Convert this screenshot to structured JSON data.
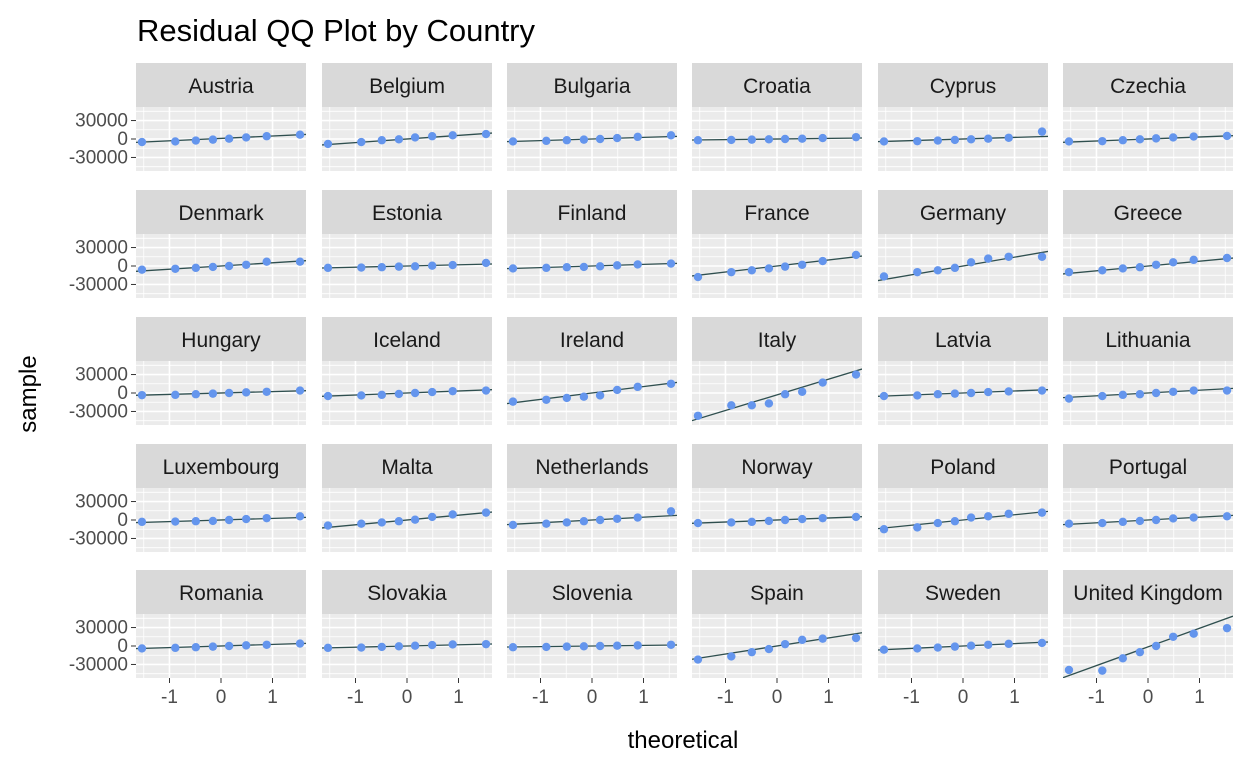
{
  "chart_data": {
    "type": "scatter",
    "title": "Residual QQ Plot by Country",
    "xlabel": "theoretical",
    "ylabel": "sample",
    "xlim": [
      -1.65,
      1.65
    ],
    "ylim": [
      -52000,
      52000
    ],
    "xticks": [
      -1,
      0,
      1
    ],
    "yticks": [
      -30000,
      0,
      30000
    ],
    "grid": true,
    "point_color": "#6495ED",
    "line_color": "#2F4F4F",
    "theoretical": [
      -1.5341,
      -0.8871,
      -0.4888,
      -0.1573,
      0.1573,
      0.4888,
      0.8871,
      1.5341
    ],
    "panels": [
      {
        "name": "Austria",
        "sample": [
          -5000,
          -4000,
          -2500,
          -1000,
          500,
          2500,
          4500,
          7000
        ],
        "line": [
          -5000,
          7000
        ]
      },
      {
        "name": "Belgium",
        "sample": [
          -8000,
          -5000,
          -2000,
          -500,
          2500,
          4500,
          6000,
          8000
        ],
        "line": [
          -9000,
          9000
        ]
      },
      {
        "name": "Bulgaria",
        "sample": [
          -4000,
          -3000,
          -2000,
          -1000,
          0,
          1500,
          3500,
          6000
        ],
        "line": [
          -4000,
          4000
        ]
      },
      {
        "name": "Croatia",
        "sample": [
          -2000,
          -1500,
          -1000,
          -500,
          0,
          500,
          1500,
          3000
        ],
        "line": [
          -1500,
          1500
        ]
      },
      {
        "name": "Cyprus",
        "sample": [
          -4000,
          -3500,
          -2500,
          -1500,
          -500,
          500,
          2000,
          12000
        ],
        "line": [
          -4000,
          4000
        ]
      },
      {
        "name": "Czechia",
        "sample": [
          -4000,
          -3500,
          -2000,
          -500,
          1000,
          2500,
          4000,
          5000
        ],
        "line": [
          -5000,
          5000
        ]
      },
      {
        "name": "Denmark",
        "sample": [
          -6000,
          -4500,
          -3000,
          -1500,
          0,
          2000,
          7000,
          7000
        ],
        "line": [
          -8000,
          8000
        ]
      },
      {
        "name": "Estonia",
        "sample": [
          -3000,
          -2500,
          -2000,
          -1000,
          -500,
          500,
          1500,
          5000
        ],
        "line": [
          -3000,
          3000
        ]
      },
      {
        "name": "Finland",
        "sample": [
          -4000,
          -3000,
          -2000,
          -1500,
          -500,
          1000,
          2500,
          4000
        ],
        "line": [
          -4000,
          4000
        ]
      },
      {
        "name": "France",
        "sample": [
          -18000,
          -10000,
          -7000,
          -4000,
          -1000,
          2000,
          8000,
          18000
        ],
        "line": [
          -15000,
          15000
        ]
      },
      {
        "name": "Germany",
        "sample": [
          -17000,
          -10000,
          -7000,
          -3000,
          6000,
          12000,
          15000,
          15000
        ],
        "line": [
          -22000,
          22000
        ]
      },
      {
        "name": "Greece",
        "sample": [
          -10000,
          -7000,
          -4000,
          -2000,
          2000,
          6000,
          10000,
          13000
        ],
        "line": [
          -12000,
          12000
        ]
      },
      {
        "name": "Hungary",
        "sample": [
          -3500,
          -3000,
          -2000,
          -1000,
          0,
          1000,
          2000,
          4000
        ],
        "line": [
          -3500,
          3500
        ]
      },
      {
        "name": "Iceland",
        "sample": [
          -5000,
          -4000,
          -3000,
          -1500,
          0,
          1500,
          3000,
          4000
        ],
        "line": [
          -5000,
          5000
        ]
      },
      {
        "name": "Ireland",
        "sample": [
          -14000,
          -11000,
          -8000,
          -6000,
          -4000,
          5000,
          10000,
          15000
        ],
        "line": [
          -16000,
          16000
        ]
      },
      {
        "name": "Italy",
        "sample": [
          -37000,
          -20000,
          -20000,
          -17000,
          -2000,
          2000,
          17000,
          30000
        ],
        "line": [
          -42000,
          36000
        ]
      },
      {
        "name": "Latvia",
        "sample": [
          -5000,
          -4000,
          -2000,
          -1000,
          0,
          1500,
          2500,
          4000
        ],
        "line": [
          -5000,
          5000
        ]
      },
      {
        "name": "Lithuania",
        "sample": [
          -9000,
          -5000,
          -3000,
          -2000,
          0,
          2000,
          4000,
          4000
        ],
        "line": [
          -7000,
          7000
        ]
      },
      {
        "name": "Luxembourg",
        "sample": [
          -3000,
          -2500,
          -2000,
          -1500,
          0,
          1500,
          3000,
          6000
        ],
        "line": [
          -4000,
          4000
        ]
      },
      {
        "name": "Malta",
        "sample": [
          -9000,
          -6000,
          -4000,
          -2000,
          500,
          5000,
          9000,
          12000
        ],
        "line": [
          -12000,
          12000
        ]
      },
      {
        "name": "Netherlands",
        "sample": [
          -8000,
          -6000,
          -4000,
          -2000,
          0,
          2000,
          4000,
          14000
        ],
        "line": [
          -7000,
          7000
        ]
      },
      {
        "name": "Norway",
        "sample": [
          -5000,
          -4000,
          -3000,
          -1500,
          0,
          1500,
          3000,
          5000
        ],
        "line": [
          -5000,
          5000
        ]
      },
      {
        "name": "Poland",
        "sample": [
          -15000,
          -12000,
          -5000,
          -2000,
          4000,
          6000,
          10000,
          12000
        ],
        "line": [
          -13000,
          13000
        ]
      },
      {
        "name": "Portugal",
        "sample": [
          -6000,
          -5000,
          -3000,
          -1500,
          0,
          2500,
          4000,
          6000
        ],
        "line": [
          -7000,
          7000
        ]
      },
      {
        "name": "Romania",
        "sample": [
          -4000,
          -3000,
          -2000,
          -1000,
          0,
          1000,
          2000,
          4000
        ],
        "line": [
          -4000,
          4000
        ]
      },
      {
        "name": "Slovakia",
        "sample": [
          -3000,
          -2500,
          -1500,
          -500,
          500,
          1500,
          2500,
          3000
        ],
        "line": [
          -3000,
          3000
        ]
      },
      {
        "name": "Slovenia",
        "sample": [
          -2000,
          -1500,
          -1000,
          -500,
          0,
          500,
          1000,
          2000
        ],
        "line": [
          -1500,
          1500
        ]
      },
      {
        "name": "Spain",
        "sample": [
          -22000,
          -17000,
          -10000,
          -5000,
          3000,
          10000,
          12000,
          13000
        ],
        "line": [
          -20000,
          20000
        ]
      },
      {
        "name": "Sweden",
        "sample": [
          -6000,
          -4000,
          -2500,
          -1000,
          500,
          2000,
          3500,
          5000
        ],
        "line": [
          -6000,
          6000
        ]
      },
      {
        "name": "United Kingdom",
        "sample": [
          -39000,
          -40000,
          -20000,
          -10000,
          0,
          15000,
          20000,
          29000
        ],
        "line": [
          -48000,
          45000
        ]
      }
    ]
  }
}
